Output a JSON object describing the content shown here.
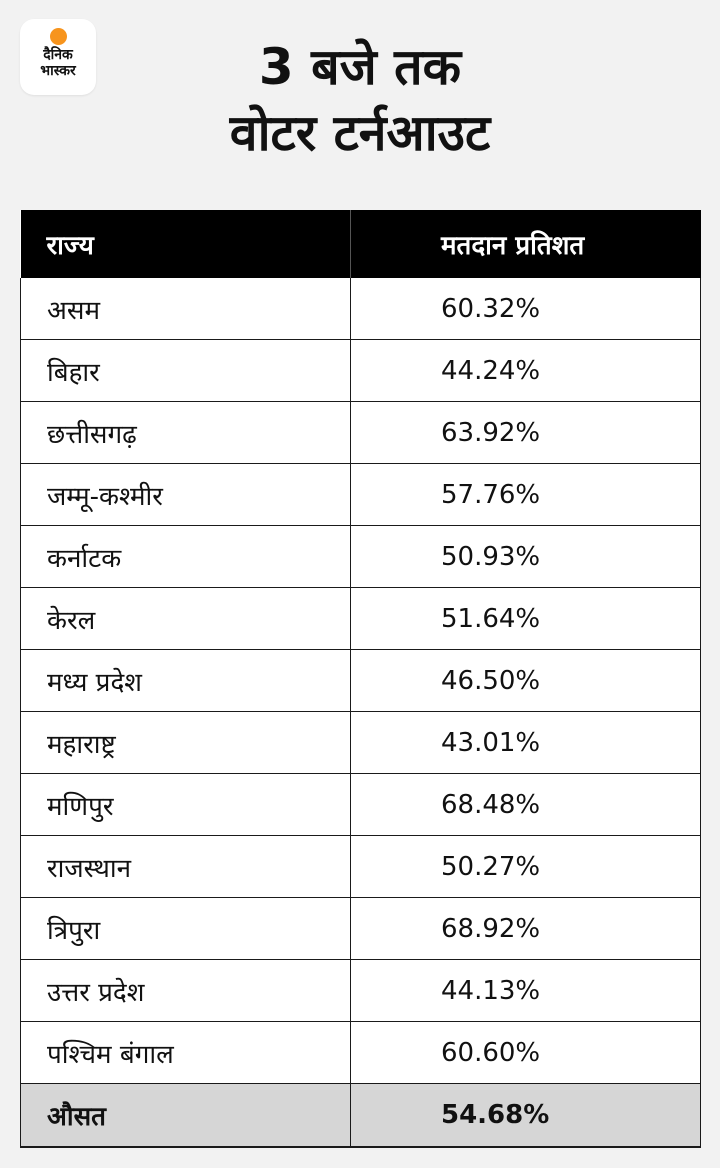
{
  "logo": {
    "line1": "दैनिक",
    "line2": "भास्कर",
    "dot_color": "#f7941d"
  },
  "title": {
    "line1": "3 बजे तक",
    "line2": "वोटर टर्नआउट"
  },
  "table": {
    "headers": {
      "state": "राज्य",
      "percent": "मतदान प्रतिशत"
    },
    "rows": [
      {
        "state": "असम",
        "percent": "60.32%"
      },
      {
        "state": "बिहार",
        "percent": "44.24%"
      },
      {
        "state": "छत्तीसगढ़",
        "percent": "63.92%"
      },
      {
        "state": "जम्मू-कश्मीर",
        "percent": "57.76%"
      },
      {
        "state": "कर्नाटक",
        "percent": "50.93%"
      },
      {
        "state": "केरल",
        "percent": "51.64%"
      },
      {
        "state": "मध्य प्रदेश",
        "percent": "46.50%"
      },
      {
        "state": "महाराष्ट्र",
        "percent": "43.01%"
      },
      {
        "state": "मणिपुर",
        "percent": "68.48%"
      },
      {
        "state": "राजस्थान",
        "percent": "50.27%"
      },
      {
        "state": "त्रिपुरा",
        "percent": "68.92%"
      },
      {
        "state": "उत्तर प्रदेश",
        "percent": "44.13%"
      },
      {
        "state": "पश्चिम बंगाल",
        "percent": "60.60%"
      }
    ],
    "average": {
      "state": "औसत",
      "percent": "54.68%"
    }
  },
  "colors": {
    "background": "#f2f2f2",
    "header_bg": "#000000",
    "average_bg": "#d6d6d6"
  }
}
